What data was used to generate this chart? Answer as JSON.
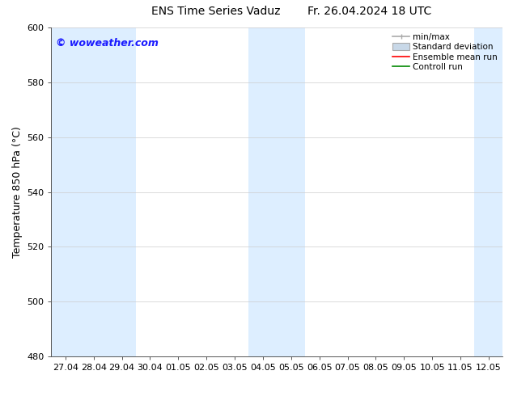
{
  "title_left": "ENS Time Series Vaduz",
  "title_right": "Fr. 26.04.2024 18 UTC",
  "ylabel": "Temperature 850 hPa (°C)",
  "watermark": "© woweather.com",
  "watermark_color": "#1a1aff",
  "ylim": [
    480,
    600
  ],
  "yticks": [
    480,
    500,
    520,
    540,
    560,
    580,
    600
  ],
  "xtick_labels": [
    "27.04",
    "28.04",
    "29.04",
    "30.04",
    "01.05",
    "02.05",
    "03.05",
    "04.05",
    "05.05",
    "06.05",
    "07.05",
    "08.05",
    "09.05",
    "10.05",
    "11.05",
    "12.05"
  ],
  "n_xticks": 16,
  "background_color": "#ffffff",
  "plot_bg_color": "#ffffff",
  "shaded_color": "#ddeeff",
  "shaded_indices": [
    0,
    1,
    2,
    7,
    8,
    15
  ],
  "legend_entries": [
    {
      "label": "min/max",
      "color": "#aaaaaa",
      "style": "minmax"
    },
    {
      "label": "Standard deviation",
      "color": "#c8d8e8",
      "style": "stddev"
    },
    {
      "label": "Ensemble mean run",
      "color": "#ff0000",
      "style": "line"
    },
    {
      "label": "Controll run",
      "color": "#008800",
      "style": "line"
    }
  ],
  "title_fontsize": 10,
  "ylabel_fontsize": 9,
  "tick_fontsize": 8,
  "watermark_fontsize": 9,
  "legend_fontsize": 7.5
}
